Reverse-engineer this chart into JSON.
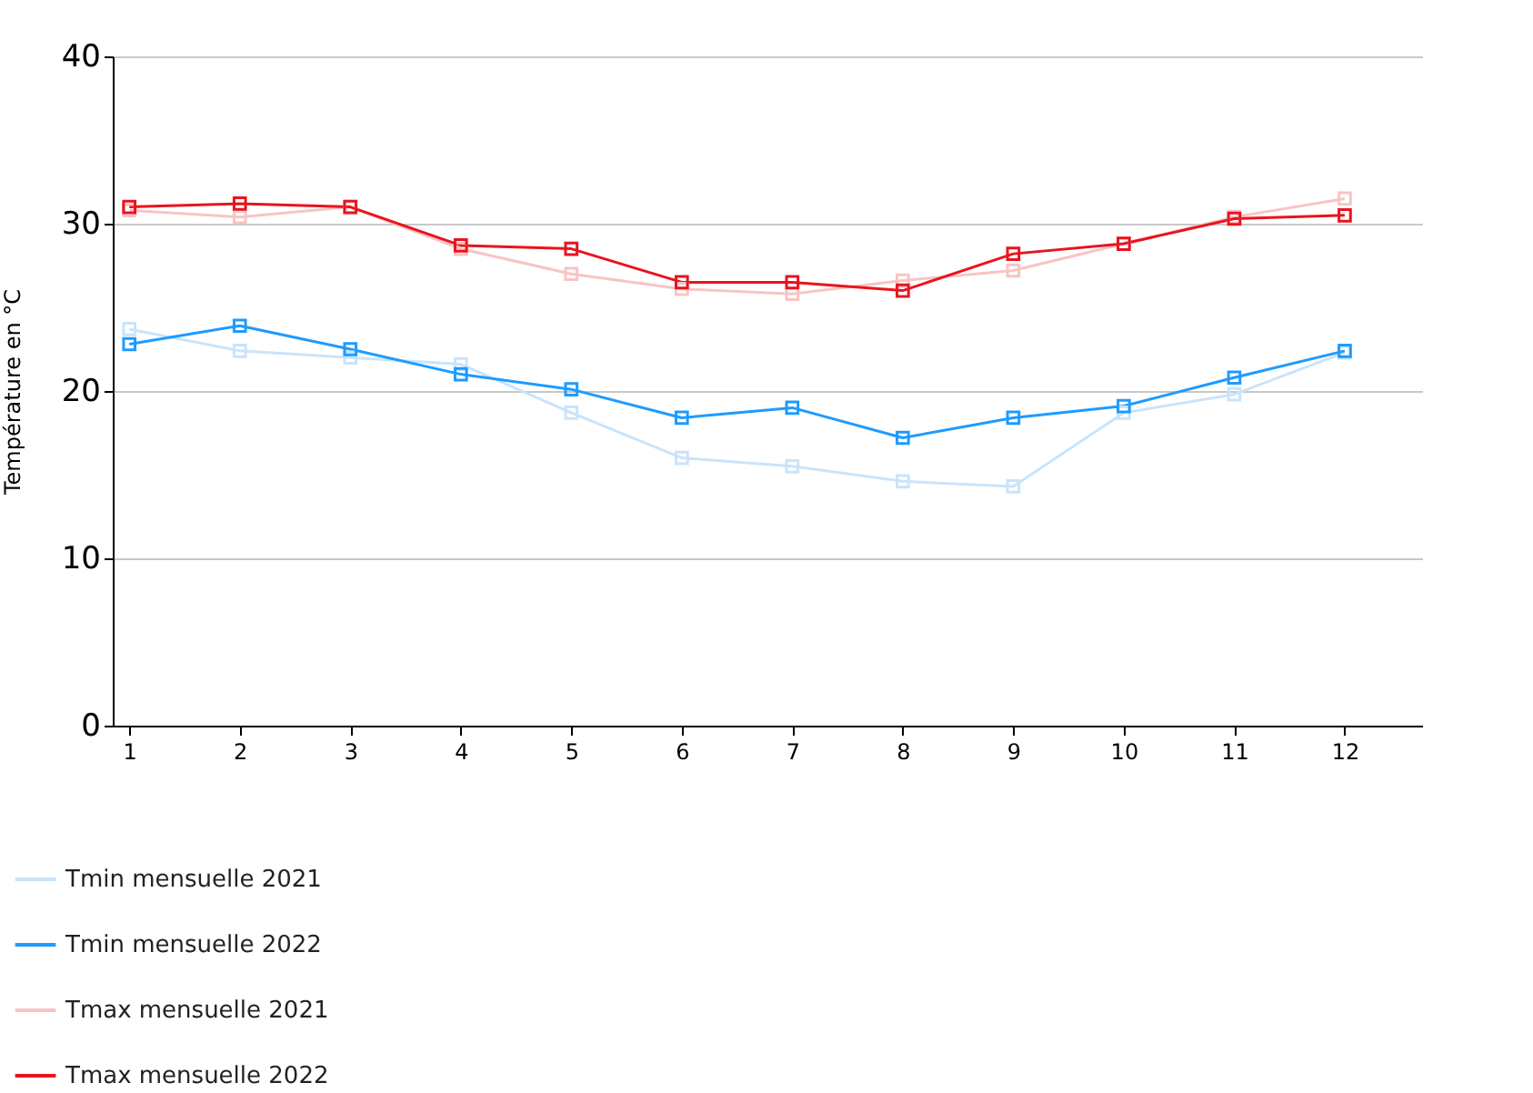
{
  "chart_data": {
    "type": "line",
    "ylabel": "Température en °C",
    "x": [
      1,
      2,
      3,
      4,
      5,
      6,
      7,
      8,
      9,
      10,
      11,
      12
    ],
    "xlim": [
      0.85,
      12.7
    ],
    "xticks": [
      1,
      2,
      3,
      4,
      5,
      6,
      7,
      8,
      9,
      10,
      11,
      12
    ],
    "series": [
      {
        "name": "Tmin mensuelle 2021",
        "color": "#c9e4fb",
        "values": [
          23.7,
          22.4,
          22.0,
          21.6,
          18.7,
          16.0,
          15.5,
          14.6,
          14.3,
          18.7,
          19.8,
          22.3
        ]
      },
      {
        "name": "Tmin mensuelle 2022",
        "color": "#1e9bff",
        "values": [
          22.8,
          23.9,
          22.5,
          21.0,
          20.1,
          18.4,
          19.0,
          17.2,
          18.4,
          19.1,
          20.8,
          22.4
        ]
      },
      {
        "name": "Tmax mensuelle 2021",
        "color": "#f8c4c4",
        "values": [
          30.8,
          30.4,
          31.0,
          28.5,
          27.0,
          26.1,
          25.8,
          26.6,
          27.2,
          28.8,
          30.4,
          31.5
        ]
      },
      {
        "name": "Tmax mensuelle 2022",
        "color": "#e8141e",
        "values": [
          31.0,
          31.2,
          31.0,
          28.7,
          28.5,
          26.5,
          26.5,
          26.0,
          28.2,
          28.8,
          30.3,
          30.5
        ]
      }
    ],
    "ylim": [
      0,
      40
    ],
    "yticks": [
      0,
      10,
      20,
      30,
      40
    ],
    "grid": "y",
    "legend": "bottom left",
    "marker": "square",
    "line_style": "solid"
  }
}
